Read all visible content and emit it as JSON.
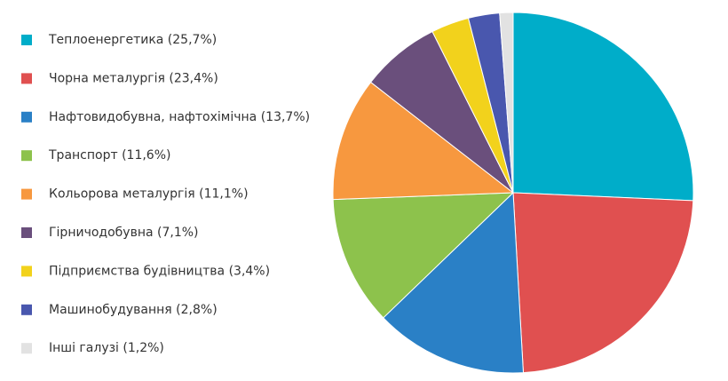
{
  "chart_data": {
    "type": "pie",
    "categories": [
      "Теплоенергетика (25,7%)",
      "Чорна металургія (23,4%)",
      "Нафтовидобувна, нафтохімічна (13,7%)",
      "Транспорт (11,6%)",
      "Кольорова металургія (11,1%)",
      "Гірничодобувна (7,1%)",
      "Підприємства будівництва (3,4%)",
      "Машинобудування (2,8%)",
      "Інші галузі (1,2%)"
    ],
    "values": [
      25.7,
      23.4,
      13.7,
      11.6,
      11.1,
      7.1,
      3.4,
      2.8,
      1.2
    ],
    "colors": [
      "#00adc9",
      "#e05050",
      "#2a80c6",
      "#8dc24c",
      "#f7983f",
      "#6a4f7c",
      "#f2d21c",
      "#4957ae",
      "#e2e2e2"
    ],
    "legend": "left"
  }
}
